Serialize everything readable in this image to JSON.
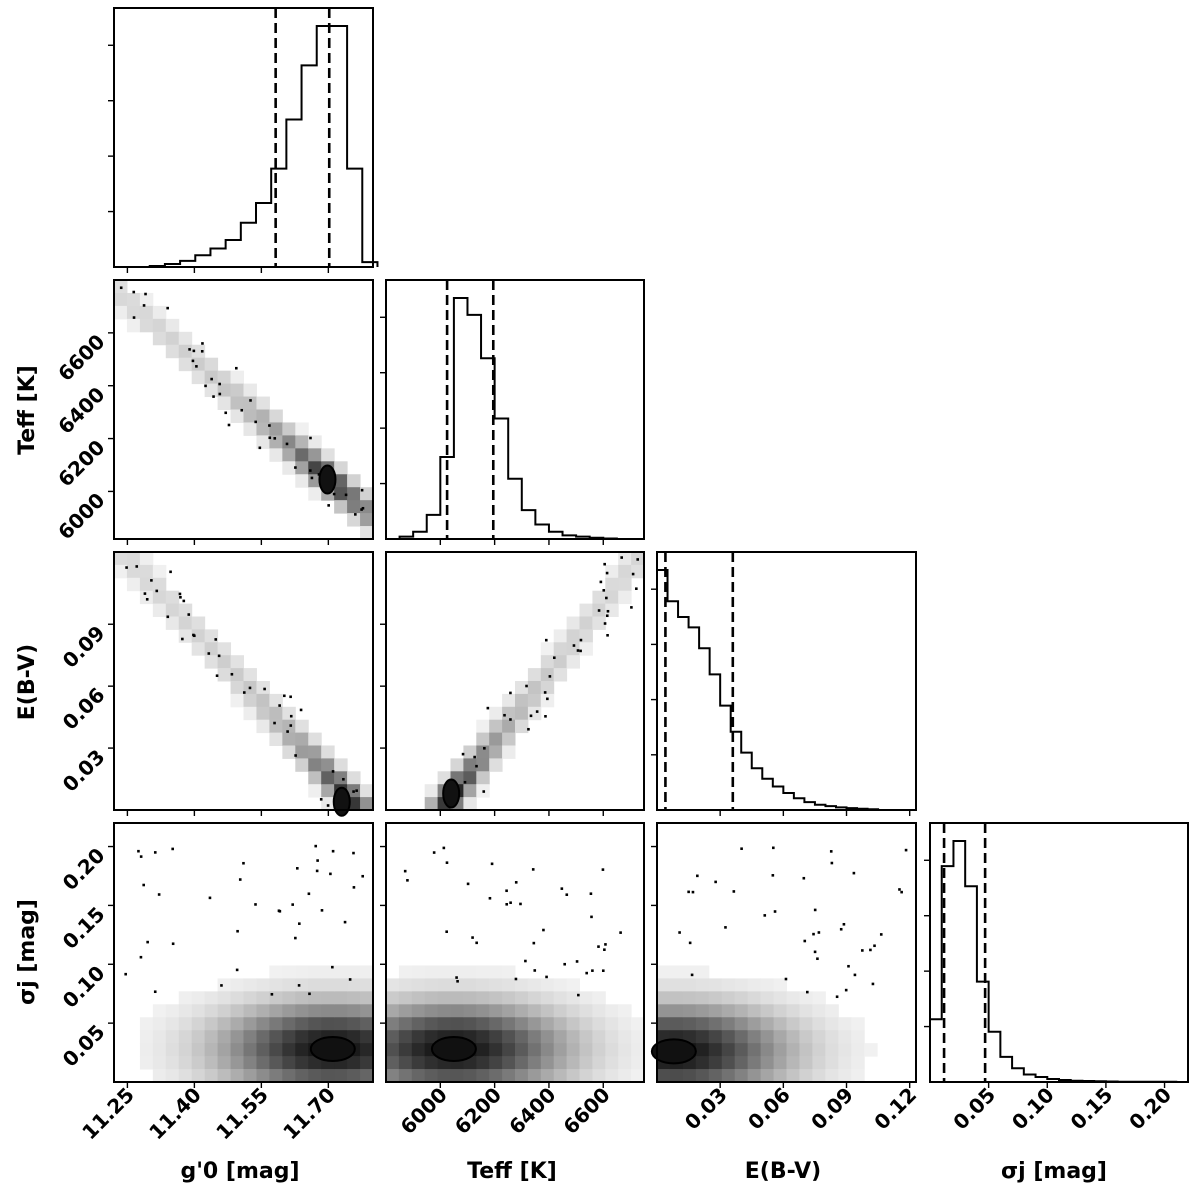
{
  "figure": {
    "type": "corner-plot",
    "description_parameters": [
      "g'0",
      "Teff",
      "E(B-V)",
      "sigma_j"
    ]
  },
  "chart_data": [
    {
      "id": "hist_g",
      "type": "bar",
      "title": "",
      "xlim": [
        11.22,
        11.8
      ],
      "x": [
        11.266,
        11.3,
        11.334,
        11.368,
        11.402,
        11.436,
        11.47,
        11.504,
        11.538,
        11.572,
        11.606,
        11.64,
        11.674,
        11.708,
        11.742,
        11.776
      ],
      "values": [
        0,
        0.004,
        0.012,
        0.025,
        0.048,
        0.075,
        0.11,
        0.18,
        0.26,
        0.4,
        0.6,
        0.82,
        0.98,
        0.98,
        0.4,
        0.02
      ],
      "quantiles": [
        11.582,
        11.702
      ]
    },
    {
      "id": "hist_t",
      "type": "bar",
      "xlim": [
        5800,
        6750
      ],
      "x": [
        5800,
        5850,
        5900,
        5950,
        6000,
        6050,
        6100,
        6150,
        6200,
        6250,
        6300,
        6350,
        6400,
        6450,
        6500,
        6550,
        6600
      ],
      "values": [
        0,
        0.01,
        0.03,
        0.1,
        0.34,
        1.0,
        0.93,
        0.75,
        0.5,
        0.25,
        0.12,
        0.06,
        0.03,
        0.015,
        0.01,
        0.005,
        0.002
      ],
      "quantiles": [
        6025,
        6195
      ]
    },
    {
      "id": "hist_e",
      "type": "bar",
      "xlim": [
        0.0,
        0.123
      ],
      "x": [
        0,
        0.005,
        0.01,
        0.015,
        0.02,
        0.025,
        0.03,
        0.035,
        0.04,
        0.045,
        0.05,
        0.055,
        0.06,
        0.065,
        0.07,
        0.075,
        0.08,
        0.085,
        0.09,
        0.095,
        0.1
      ],
      "values": [
        0.92,
        0.8,
        0.74,
        0.7,
        0.62,
        0.52,
        0.4,
        0.3,
        0.22,
        0.16,
        0.12,
        0.09,
        0.065,
        0.045,
        0.03,
        0.02,
        0.015,
        0.01,
        0.007,
        0.005,
        0.003
      ],
      "quantiles": [
        0.004,
        0.036
      ]
    },
    {
      "id": "hist_s",
      "type": "bar",
      "xlim": [
        0.0,
        0.22
      ],
      "x": [
        0,
        0.01,
        0.02,
        0.03,
        0.04,
        0.05,
        0.06,
        0.07,
        0.08,
        0.09,
        0.1,
        0.11,
        0.12,
        0.13,
        0.14,
        0.15,
        0.16,
        0.17,
        0.18,
        0.19,
        0.2
      ],
      "values": [
        0.25,
        0.86,
        0.96,
        0.78,
        0.4,
        0.2,
        0.1,
        0.055,
        0.03,
        0.02,
        0.012,
        0.008,
        0.005,
        0.004,
        0.003,
        0.002,
        0.001,
        0.001,
        0.001,
        0.001,
        0.001
      ],
      "quantiles": [
        0.012,
        0.047
      ]
    },
    {
      "id": "scatter_g_t",
      "type": "scatter",
      "xlim": [
        11.22,
        11.8
      ],
      "ylim": [
        5820,
        6800
      ],
      "ridge": {
        "x": [
          11.25,
          11.8
        ],
        "y": [
          6720,
          5900
        ]
      },
      "peak": [
        11.698,
        6045
      ],
      "contour": []
    },
    {
      "id": "scatter_g_e",
      "type": "scatter",
      "xlim": [
        11.22,
        11.8
      ],
      "ylim": [
        0.0,
        0.125
      ],
      "ridge": {
        "x": [
          11.25,
          11.76
        ],
        "y": [
          0.122,
          0.003
        ]
      },
      "peak": [
        11.73,
        0.004
      ],
      "contour": []
    },
    {
      "id": "scatter_t_e",
      "type": "scatter",
      "xlim": [
        5800,
        6750
      ],
      "ylim": [
        0.0,
        0.125
      ],
      "ridge": {
        "x": [
          6020,
          6730
        ],
        "y": [
          0.003,
          0.122
        ]
      },
      "peak": [
        6040,
        0.008
      ],
      "contour": []
    },
    {
      "id": "scatter_g_s",
      "type": "scatter",
      "xlim": [
        11.22,
        11.8
      ],
      "ylim": [
        0.0,
        0.22
      ],
      "ridge": {
        "x": [
          11.3,
          11.8
        ],
        "y": [
          0.03,
          0.03
        ]
      },
      "peak": [
        11.71,
        0.028
      ],
      "contour": []
    },
    {
      "id": "scatter_t_s",
      "type": "scatter",
      "xlim": [
        5800,
        6750
      ],
      "ylim": [
        0.0,
        0.22
      ],
      "ridge": {
        "x": [
          5850,
          6600
        ],
        "y": [
          0.03,
          0.03
        ]
      },
      "peak": [
        6050,
        0.028
      ],
      "contour": []
    },
    {
      "id": "scatter_e_s",
      "type": "scatter",
      "xlim": [
        0.0,
        0.123
      ],
      "ylim": [
        0.0,
        0.22
      ],
      "ridge": {
        "x": [
          0.0,
          0.11
        ],
        "y": [
          0.028,
          0.028
        ]
      },
      "peak": [
        0.008,
        0.026
      ],
      "contour": []
    }
  ],
  "axes": {
    "g": {
      "ticks": [
        "11.25",
        "11.40",
        "11.55",
        "11.70"
      ],
      "tick_values": [
        11.25,
        11.4,
        11.55,
        11.7
      ],
      "label": "g'0 [mag]"
    },
    "t": {
      "ticks": [
        "6000",
        "6200",
        "6400",
        "6600"
      ],
      "tick_values": [
        6000,
        6200,
        6400,
        6600
      ],
      "label": "Teff [K]"
    },
    "e": {
      "ticks": [
        "0.03",
        "0.06",
        "0.09",
        "0.12"
      ],
      "tick_values": [
        0.03,
        0.06,
        0.09,
        0.12
      ],
      "y_ticks": [
        "0.03",
        "0.06",
        "0.09"
      ],
      "y_tick_values": [
        0.03,
        0.06,
        0.09
      ],
      "label": "E(B-V)"
    },
    "s": {
      "ticks": [
        "0.05",
        "0.10",
        "0.15",
        "0.20"
      ],
      "tick_values": [
        0.05,
        0.1,
        0.15,
        0.2
      ],
      "label": "σj [mag]"
    }
  },
  "colors": {
    "ink": "#000000",
    "density_dark": "#111111",
    "density_light": "#f2f2f2"
  }
}
